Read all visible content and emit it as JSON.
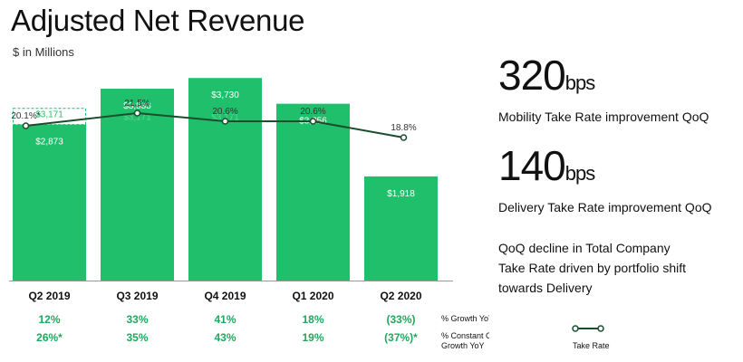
{
  "title": "Adjusted Net Revenue",
  "subtitle": "$ in Millions",
  "kpis": [
    {
      "value": "320",
      "unit": "bps",
      "caption": "Mobility Take Rate improvement QoQ"
    },
    {
      "value": "140",
      "unit": "bps",
      "caption": "Delivery Take Rate improvement QoQ"
    }
  ],
  "note_lines": [
    "QoQ decline in Total Company",
    "Take Rate driven by portfolio shift",
    "towards Delivery"
  ],
  "row_labels": {
    "growth": "% Growth YoY",
    "constant_currency_1": "% Constant Currency",
    "constant_currency_2": "Growth YoY"
  },
  "legend_label": "Take Rate",
  "colors": {
    "bar": "#1fbf6b",
    "line": "#1a4d2e",
    "growth_text": "#1fa85e",
    "ghost_text": "#5ed693"
  },
  "chart_data": {
    "type": "bar",
    "categories": [
      "Q2 2019",
      "Q3 2019",
      "Q4 2019",
      "Q1 2020",
      "Q2 2020"
    ],
    "ylim": [
      0,
      4000
    ],
    "series": [
      {
        "values": [
          2873,
          3533,
          3730,
          3256,
          1918
        ],
        "labels": [
          "$2,873",
          "$3,533",
          "$3,730",
          "$3,256",
          "$1,918"
        ]
      }
    ],
    "reference": {
      "values": [
        3171,
        3171,
        3171
      ],
      "labels": [
        "$3,171",
        "$3,171",
        "$3,171"
      ],
      "indices": [
        0,
        1,
        2
      ]
    },
    "take_rate": {
      "values": [
        20.1,
        21.5,
        20.6,
        20.6,
        18.8
      ],
      "labels": [
        "20.1%*",
        "21.5%",
        "20.6%",
        "20.6%",
        "18.8%"
      ],
      "ylim": [
        16,
        24
      ]
    },
    "growth_yoy": [
      "12%",
      "33%",
      "41%",
      "18%",
      "(33%)"
    ],
    "constant_currency_growth_yoy": [
      "26%*",
      "35%",
      "43%",
      "19%",
      "(37%)*"
    ]
  }
}
